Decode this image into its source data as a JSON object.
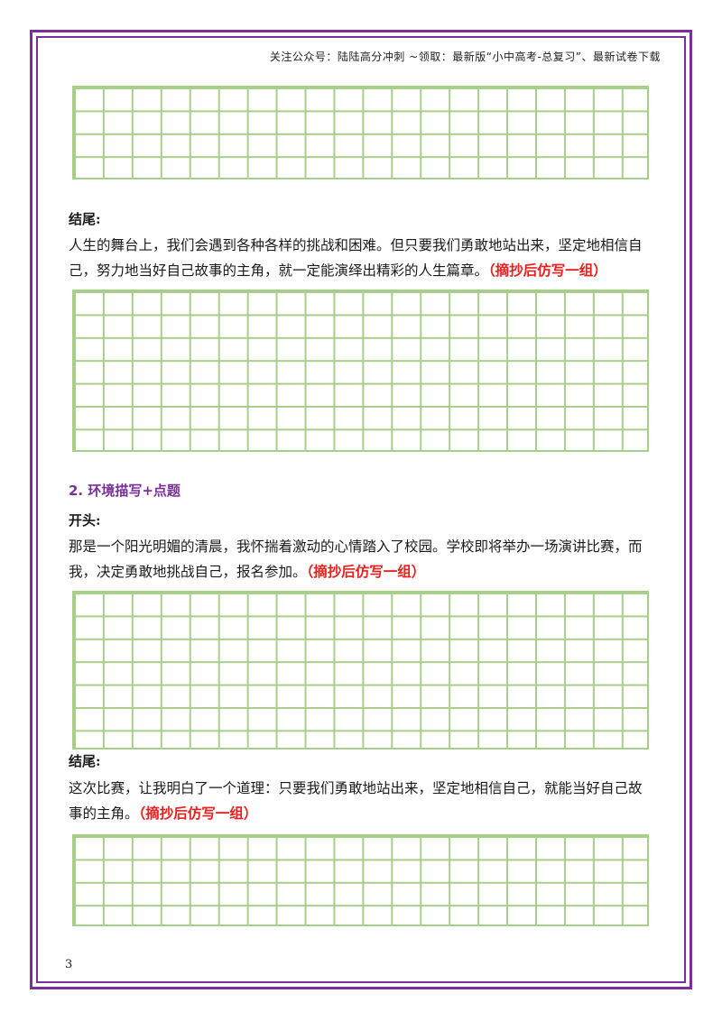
{
  "header": {
    "text": "关注公众号：陆陆高分冲刺 ~领取：最新版“小中高考-总复习”、最新试卷下载"
  },
  "blocks": {
    "ending1_label": "结尾:",
    "ending1_text": "人生的舞台上，我们会遇到各种各样的挑战和困难。但只要我们勇敢地站出来，坚定地相信自己，努力地当好自己故事的主角，就一定能演绎出精彩的人生篇章。",
    "ending1_note": "（摘抄后仿写一组）",
    "section2_title": "2. 环境描写+点题",
    "opening2_label": "开头:",
    "opening2_text": "那是一个阳光明媚的清晨，我怀揣着激动的心情踏入了校园。学校即将举办一场演讲比赛，而我，决定勇敢地挑战自己，报名参加。",
    "opening2_note": "（摘抄后仿写一组）",
    "ending2_label": "结尾:",
    "ending2_text": "这次比赛，让我明白了一个道理：只要我们勇敢地站出来，坚定地相信自己，就能当好自己故事的主角。",
    "ending2_note": "（摘抄后仿写一组）"
  },
  "page_number": "3",
  "colors": {
    "frame": "#7a2f9a",
    "grid": "#a8cf8a",
    "note": "#e8201e",
    "section": "#7a2f9a"
  }
}
